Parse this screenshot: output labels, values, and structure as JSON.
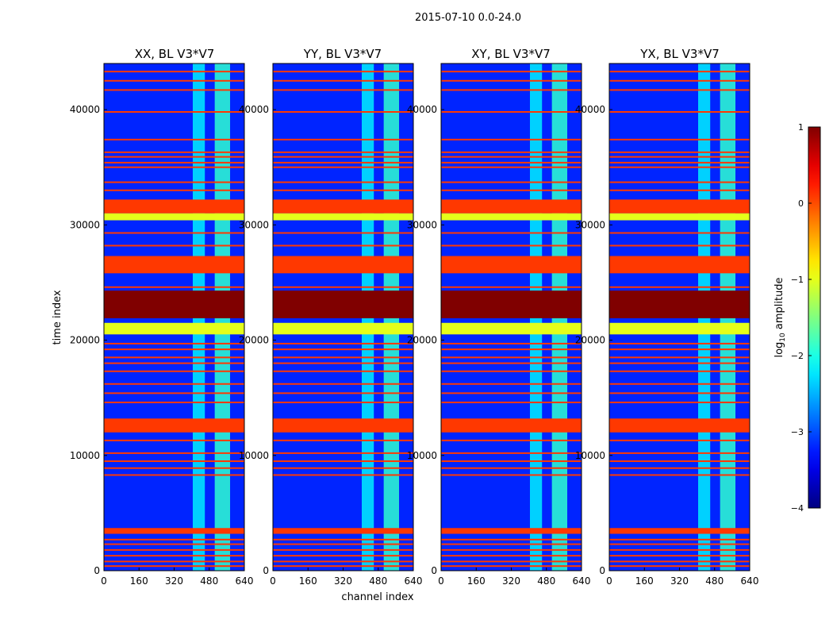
{
  "figure": {
    "suptitle": "2015-07-10 0.0-24.0"
  },
  "chart_data": {
    "type": "heatmap",
    "xlabel": "channel index",
    "ylabel": "time index",
    "x_ticks": [
      0,
      160,
      320,
      480,
      640
    ],
    "y_ticks": [
      0,
      10000,
      20000,
      30000,
      40000
    ],
    "xlim": [
      0,
      640
    ],
    "ylim": [
      0,
      44000
    ],
    "panels": [
      {
        "title": "XX, BL V3*V7"
      },
      {
        "title": "YY, BL V3*V7"
      },
      {
        "title": "XY, BL V3*V7"
      },
      {
        "title": "YX, BL V3*V7"
      }
    ],
    "band_channels": [
      {
        "from": 405,
        "to": 460,
        "level": -2.2
      },
      {
        "from": 505,
        "to": 575,
        "level": -1.9
      }
    ],
    "background_level": -3.2,
    "flagged_time_bands": [
      {
        "from": 21900,
        "to": 24300,
        "level": 1.0
      },
      {
        "from": 31000,
        "to": 32200,
        "level": 0.1
      },
      {
        "from": 30400,
        "to": 31000,
        "level": -1.0
      },
      {
        "from": 25800,
        "to": 27300,
        "level": 0.1
      },
      {
        "from": 20500,
        "to": 21500,
        "level": -1.0
      },
      {
        "from": 12000,
        "to": 13200,
        "level": 0.1
      },
      {
        "from": 3200,
        "to": 3700,
        "level": 0.1
      }
    ],
    "flagged_time_lines": [
      400,
      800,
      1300,
      1800,
      2300,
      2700,
      8300,
      8900,
      9500,
      10200,
      11300,
      14600,
      15400,
      16200,
      17300,
      18000,
      18500,
      19200,
      19700,
      24600,
      28200,
      29300,
      33000,
      33700,
      35000,
      35400,
      35900,
      36300,
      37400,
      39800,
      41700,
      42500,
      43300
    ],
    "colorbar": {
      "label": "log",
      "label_sub": "10",
      "label_suffix": " amplitude",
      "range": [
        -4,
        1
      ],
      "ticks": [
        "1",
        "0",
        "−1",
        "−2",
        "−3",
        "−4"
      ],
      "tick_values": [
        1,
        0,
        -1,
        -2,
        -3,
        -4
      ]
    }
  }
}
